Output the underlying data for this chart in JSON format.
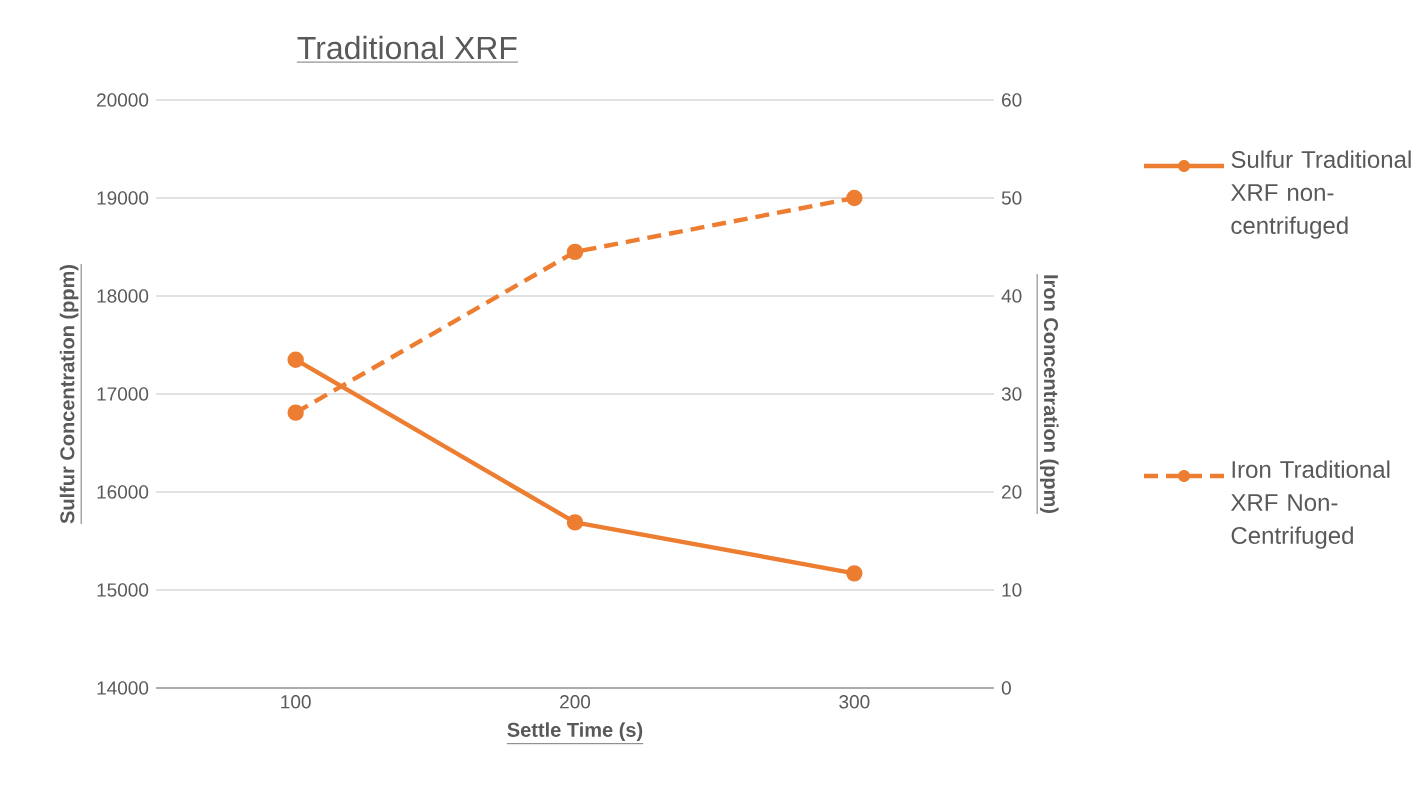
{
  "chart_data": {
    "type": "line",
    "title": "Traditional XRF",
    "xlabel": "Settle Time (s)",
    "ylabel": "Sulfur Concentration (ppm)",
    "y2label": "Iron Concentration (ppm)",
    "categories": [
      "100",
      "200",
      "300"
    ],
    "series": [
      {
        "name": "Sulfur Traditional XRF non-centrifuged",
        "color": "#ed7d31",
        "values": [
          17350,
          15690,
          15170
        ],
        "line_style": "solid"
      },
      {
        "name": "Iron Traditional XRF Non-Centrifuged",
        "color": "#ed7d31",
        "values": [
          28.1,
          44.5,
          50
        ],
        "axis": "y2",
        "line_style": "dashed"
      }
    ],
    "ylim": [
      14000,
      20000
    ],
    "yticks": [
      14000,
      15000,
      16000,
      17000,
      18000,
      19000,
      20000
    ],
    "y2lim": [
      0,
      60
    ],
    "y2ticks": [
      0,
      10,
      20,
      30,
      40,
      50,
      60
    ],
    "grid": "y",
    "legend": "right",
    "marker": "circle"
  }
}
